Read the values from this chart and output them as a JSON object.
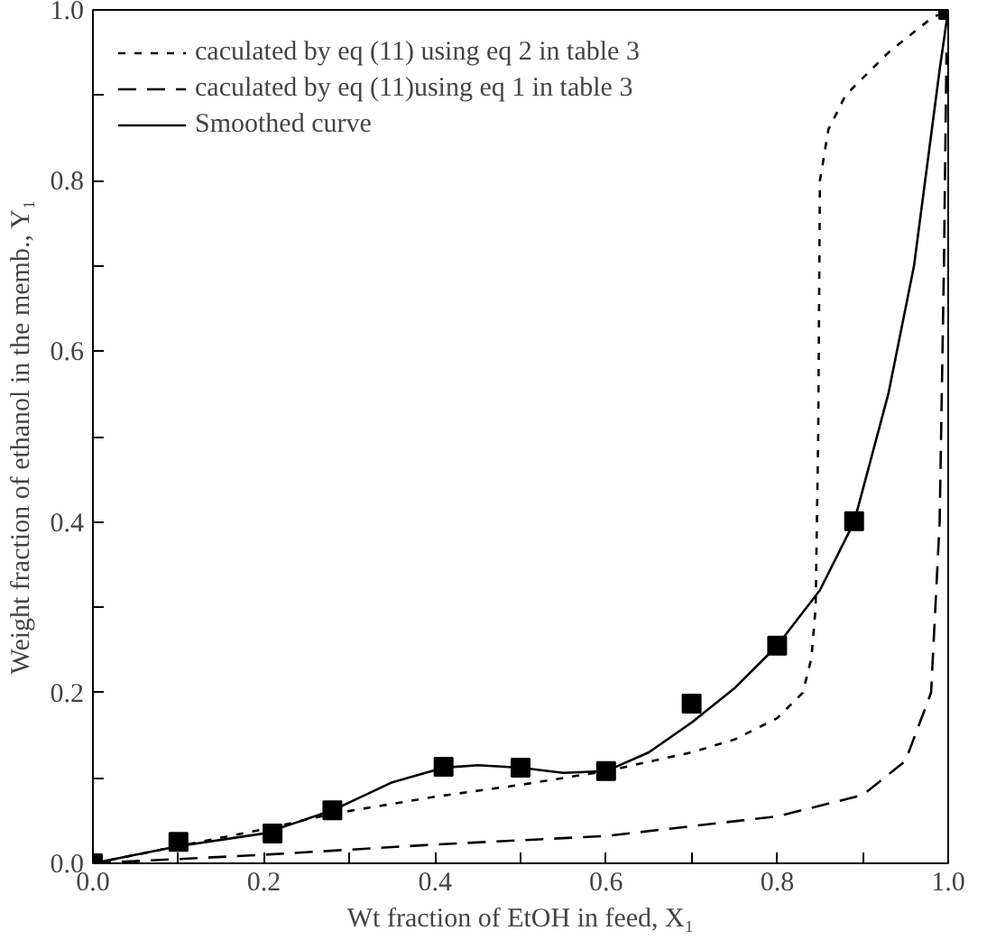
{
  "chart_data": {
    "type": "line",
    "xlabel": "Wt fraction of EtOH in feed, X₁",
    "ylabel": "Weight fraction of ethanol in the memb., Y₁",
    "xlim": [
      0,
      1.0
    ],
    "ylim": [
      0,
      1.0
    ],
    "xticks": [
      {
        "value": 0,
        "label": "0.0"
      },
      {
        "value": 0.1,
        "label": null
      },
      {
        "value": 0.2,
        "label": "0.2"
      },
      {
        "value": 0.3,
        "label": null
      },
      {
        "value": 0.4,
        "label": "0.4"
      },
      {
        "value": 0.5,
        "label": null
      },
      {
        "value": 0.6,
        "label": "0.6"
      },
      {
        "value": 0.7,
        "label": null
      },
      {
        "value": 0.8,
        "label": "0.8"
      },
      {
        "value": 0.9,
        "label": null
      },
      {
        "value": 1.0,
        "label": "1.0"
      }
    ],
    "yticks": [
      {
        "value": 0,
        "label": "0.0"
      },
      {
        "value": 0.1,
        "label": null
      },
      {
        "value": 0.2,
        "label": "0.2"
      },
      {
        "value": 0.3,
        "label": null
      },
      {
        "value": 0.4,
        "label": "0.4"
      },
      {
        "value": 0.5,
        "label": null
      },
      {
        "value": 0.6,
        "label": "0.6"
      },
      {
        "value": 0.7,
        "label": null
      },
      {
        "value": 0.8,
        "label": "0.8"
      },
      {
        "value": 0.9,
        "label": null
      },
      {
        "value": 1.0,
        "label": "1.0"
      }
    ],
    "grid": false,
    "legend": "top left",
    "series": [
      {
        "name": "caculated by eq (11) using eq 2 in table 3",
        "line_style": "dotted",
        "color": "#000000",
        "x": [
          0,
          0.1,
          0.2,
          0.28,
          0.4,
          0.5,
          0.6,
          0.7,
          0.75,
          0.8,
          0.83,
          0.84,
          0.845,
          0.848,
          0.85,
          0.86,
          0.88,
          0.93,
          0.98,
          1.0
        ],
        "values": [
          0,
          0.02,
          0.04,
          0.058,
          0.078,
          0.092,
          0.108,
          0.13,
          0.145,
          0.17,
          0.2,
          0.24,
          0.3,
          0.5,
          0.8,
          0.86,
          0.9,
          0.95,
          0.99,
          1.0
        ]
      },
      {
        "name": "caculated by eq (11)using eq 1 in table 3",
        "line_style": "dashed",
        "color": "#000000",
        "x": [
          0,
          0.2,
          0.4,
          0.6,
          0.8,
          0.9,
          0.95,
          0.98,
          0.99,
          0.995,
          0.998
        ],
        "values": [
          0,
          0.01,
          0.022,
          0.032,
          0.055,
          0.08,
          0.12,
          0.2,
          0.4,
          0.7,
          0.95
        ]
      },
      {
        "name": "Smoothed curve",
        "line_style": "solid",
        "color": "#000000",
        "x": [
          0,
          0.1,
          0.2,
          0.28,
          0.35,
          0.41,
          0.45,
          0.5,
          0.55,
          0.6,
          0.65,
          0.7,
          0.75,
          0.8,
          0.85,
          0.89,
          0.93,
          0.96,
          0.99,
          1.0
        ],
        "values": [
          0,
          0.02,
          0.035,
          0.062,
          0.095,
          0.112,
          0.115,
          0.112,
          0.106,
          0.108,
          0.13,
          0.165,
          0.205,
          0.255,
          0.32,
          0.4,
          0.55,
          0.7,
          0.93,
          1.0
        ]
      },
      {
        "type": "scatter",
        "marker": "square",
        "color": "#000000",
        "x": [
          0,
          0.1,
          0.21,
          0.28,
          0.41,
          0.5,
          0.6,
          0.7,
          0.8,
          0.89,
          1.0
        ],
        "values": [
          0,
          0.025,
          0.035,
          0.062,
          0.113,
          0.112,
          0.108,
          0.187,
          0.255,
          0.401,
          1.0
        ]
      }
    ]
  }
}
